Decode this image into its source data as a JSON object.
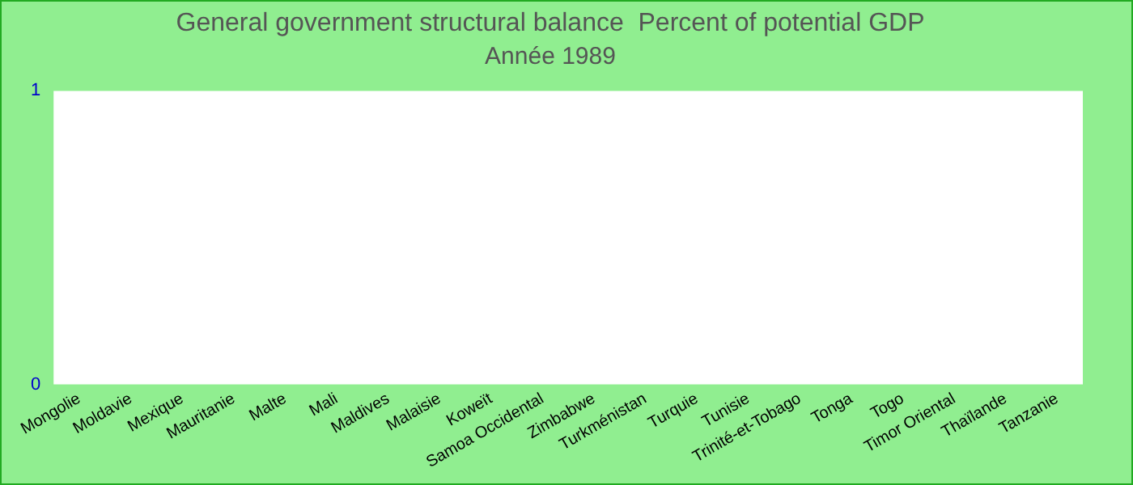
{
  "chart_data": {
    "type": "bar",
    "title": "General government structural balance  Percent of potential GDP",
    "subtitle": "Année 1989",
    "categories": [
      "Mongolie",
      "Moldavie",
      "Mexique",
      "Mauritanie",
      "Malte",
      "Mali",
      "Maldives",
      "Malaisie",
      "Koweït",
      "Samoa Occidental",
      "Zimbabwe",
      "Turkménistan",
      "Turquie",
      "Tunisie",
      "Trinité-et-Tobago",
      "Tonga",
      "Togo",
      "Timor Oriental",
      "Thaïlande",
      "Tanzanie"
    ],
    "values": [
      null,
      null,
      null,
      null,
      null,
      null,
      null,
      null,
      null,
      null,
      null,
      null,
      null,
      null,
      null,
      null,
      null,
      null,
      null,
      null
    ],
    "ylim": [
      0,
      1
    ],
    "yticks": [
      0,
      1
    ],
    "grid": false,
    "legend": false
  }
}
